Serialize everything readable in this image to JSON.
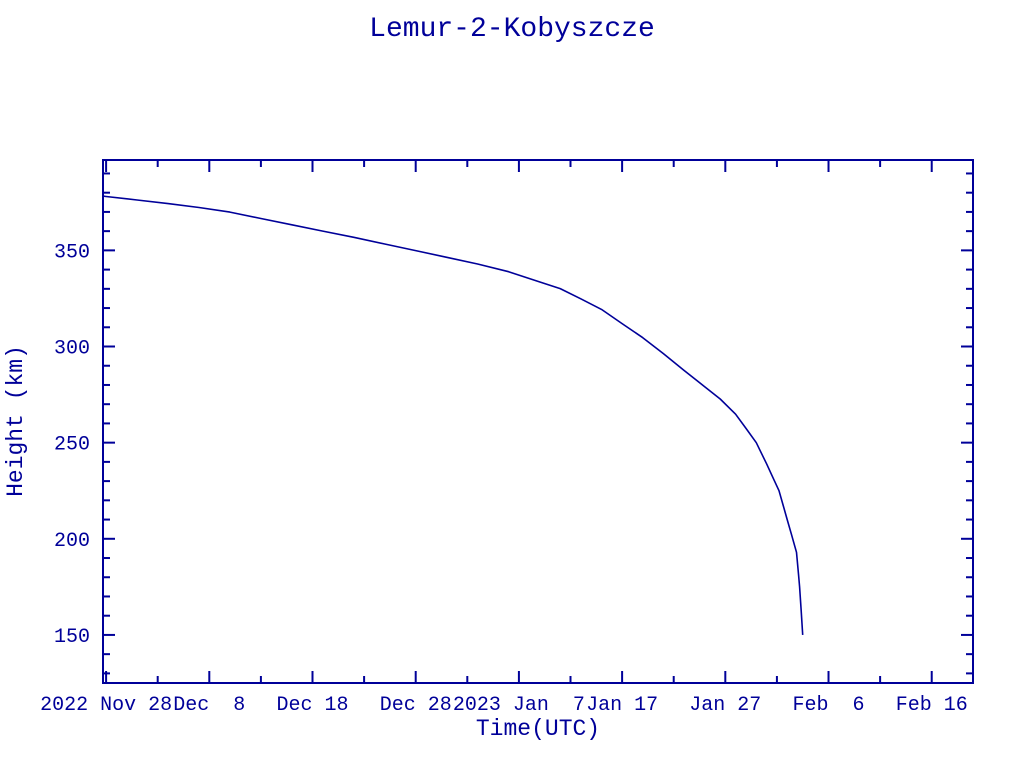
{
  "page": {
    "background": "#ffffff",
    "ink_color": "#000099"
  },
  "chart_data": {
    "type": "line",
    "title": "Lemur-2-Kobyszcze",
    "xlabel": "Time(UTC)",
    "ylabel": "Height (km)",
    "grid": false,
    "legend": "none",
    "x_unit": "days after 2022 Nov 28",
    "x_domain": [
      -0.3,
      84
    ],
    "ylim": [
      125,
      397
    ],
    "x_major_ticks": [
      {
        "d": 0,
        "label": "2022 Nov 28"
      },
      {
        "d": 10,
        "label": "Dec  8"
      },
      {
        "d": 20,
        "label": "Dec 18"
      },
      {
        "d": 30,
        "label": "Dec 28"
      },
      {
        "d": 40,
        "label": "2023 Jan  7"
      },
      {
        "d": 50,
        "label": "Jan 17"
      },
      {
        "d": 60,
        "label": "Jan 27"
      },
      {
        "d": 70,
        "label": "Feb  6"
      },
      {
        "d": 80,
        "label": "Feb 16"
      }
    ],
    "x_minor_tick_days": [
      5,
      15,
      25,
      35,
      45,
      55,
      65,
      75
    ],
    "y_major_ticks": [
      150,
      200,
      250,
      300,
      350
    ],
    "y_minor_tick_step": 10,
    "line_color": "#000099",
    "series": [
      {
        "name": "Height (km)",
        "points": [
          [
            -0.3,
            378.2
          ],
          [
            0,
            378.0
          ],
          [
            3,
            376.2
          ],
          [
            6,
            374.3
          ],
          [
            9,
            372.3
          ],
          [
            12,
            369.9
          ],
          [
            15,
            366.6
          ],
          [
            18,
            363.3
          ],
          [
            21,
            360.0
          ],
          [
            24,
            356.8
          ],
          [
            27,
            353.3
          ],
          [
            30,
            349.9
          ],
          [
            33,
            346.4
          ],
          [
            36,
            342.9
          ],
          [
            39,
            338.9
          ],
          [
            42,
            333.6
          ],
          [
            44,
            330.1
          ],
          [
            46,
            324.8
          ],
          [
            48,
            319.3
          ],
          [
            50,
            311.9
          ],
          [
            52,
            304.6
          ],
          [
            54,
            296.3
          ],
          [
            56,
            287.6
          ],
          [
            58,
            279.1
          ],
          [
            59.5,
            272.7
          ],
          [
            61,
            264.8
          ],
          [
            62,
            257.4
          ],
          [
            63,
            250.0
          ],
          [
            63.5,
            244.5
          ],
          [
            64,
            239.0
          ],
          [
            64.6,
            232.0
          ],
          [
            65.2,
            225.0
          ],
          [
            65.6,
            217.5
          ],
          [
            66,
            210.0
          ],
          [
            66.4,
            202.4
          ],
          [
            66.9,
            193.0
          ],
          [
            67.1,
            181.0
          ],
          [
            67.2,
            175.0
          ],
          [
            67.35,
            162.5
          ],
          [
            67.5,
            150.0
          ]
        ]
      }
    ]
  }
}
